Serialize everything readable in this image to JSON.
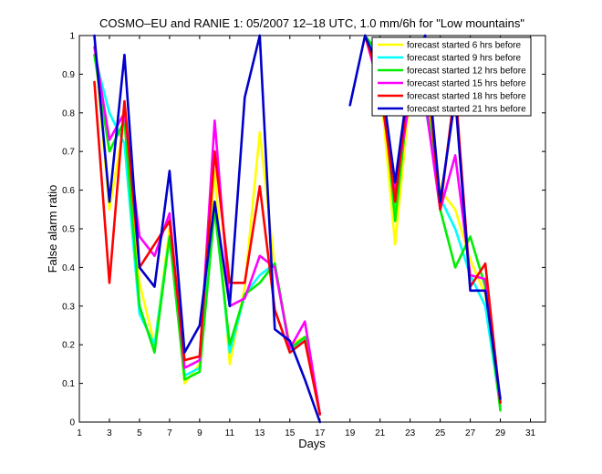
{
  "chart_data": {
    "type": "line",
    "title": "COSMO–EU and RANIE 1: 05/2007 12–18 UTC, 1.0 mm/6h for \"Low mountains\"",
    "xlabel": "Days",
    "ylabel": "False alarm ratio",
    "xlim": [
      1,
      32
    ],
    "ylim": [
      0,
      1
    ],
    "xticks": [
      1,
      3,
      5,
      7,
      9,
      11,
      13,
      15,
      17,
      19,
      21,
      23,
      25,
      27,
      29,
      31
    ],
    "yticks": [
      0,
      0.1,
      0.2,
      0.3,
      0.4,
      0.5,
      0.6,
      0.7,
      0.8,
      0.9,
      1
    ],
    "x": [
      1,
      2,
      3,
      4,
      5,
      6,
      7,
      8,
      9,
      10,
      11,
      12,
      13,
      14,
      15,
      16,
      17,
      18,
      19,
      20,
      21,
      22,
      23,
      24,
      25,
      26,
      27,
      28,
      29,
      30,
      31
    ],
    "legend_position": "top-right",
    "series": [
      {
        "name": "forecast started 6 hrs before",
        "color": "#ffff00",
        "values": [
          null,
          0.98,
          0.55,
          0.78,
          0.36,
          0.2,
          0.5,
          0.1,
          0.15,
          0.65,
          0.15,
          0.35,
          0.75,
          0.4,
          0.2,
          0.22,
          0.02,
          null,
          null,
          1.0,
          0.88,
          0.46,
          0.85,
          0.88,
          0.6,
          0.55,
          0.42,
          0.33,
          0.04,
          null,
          null
        ]
      },
      {
        "name": "forecast started 9 hrs before",
        "color": "#00ffff",
        "values": [
          null,
          0.95,
          0.8,
          0.72,
          0.28,
          0.2,
          0.48,
          0.12,
          0.14,
          0.57,
          0.18,
          0.33,
          0.38,
          0.41,
          0.18,
          0.22,
          0.02,
          null,
          null,
          1.0,
          0.92,
          0.55,
          0.89,
          0.82,
          0.58,
          0.5,
          0.38,
          0.3,
          0.04,
          null,
          null
        ]
      },
      {
        "name": "forecast started 12 hrs before",
        "color": "#00ee00",
        "values": [
          null,
          0.95,
          0.7,
          0.78,
          0.3,
          0.18,
          0.48,
          0.11,
          0.13,
          0.55,
          0.2,
          0.33,
          0.36,
          0.41,
          0.19,
          0.22,
          0.02,
          null,
          null,
          1.0,
          0.95,
          0.52,
          0.88,
          0.86,
          0.55,
          0.4,
          0.48,
          0.35,
          0.03,
          null,
          null
        ]
      },
      {
        "name": "forecast started 15 hrs before",
        "color": "#ff00ff",
        "values": [
          null,
          0.97,
          0.73,
          0.8,
          0.48,
          0.43,
          0.54,
          0.14,
          0.16,
          0.78,
          0.3,
          0.32,
          0.43,
          0.4,
          0.19,
          0.26,
          0.02,
          null,
          null,
          1.0,
          0.86,
          0.6,
          0.84,
          0.83,
          0.55,
          0.69,
          0.38,
          0.37,
          0.05,
          null,
          null
        ]
      },
      {
        "name": "forecast started 18 hrs before",
        "color": "#ff0000",
        "values": [
          null,
          0.88,
          0.36,
          0.83,
          0.4,
          0.46,
          0.52,
          0.16,
          0.17,
          0.7,
          0.36,
          0.36,
          0.61,
          0.29,
          0.18,
          0.21,
          0.02,
          null,
          null,
          1.0,
          0.88,
          0.57,
          0.9,
          0.97,
          0.55,
          0.87,
          0.35,
          0.41,
          0.05,
          null,
          null
        ]
      },
      {
        "name": "forecast started 21 hrs before",
        "color": "#0000cc",
        "values": [
          null,
          1.0,
          0.57,
          0.95,
          0.4,
          0.35,
          0.65,
          0.18,
          0.25,
          0.57,
          0.3,
          0.84,
          1.0,
          0.24,
          0.21,
          0.11,
          0.0,
          null,
          0.82,
          1.0,
          0.91,
          0.62,
          0.91,
          1.0,
          0.57,
          0.84,
          0.34,
          0.34,
          0.06,
          null,
          null
        ]
      }
    ]
  }
}
